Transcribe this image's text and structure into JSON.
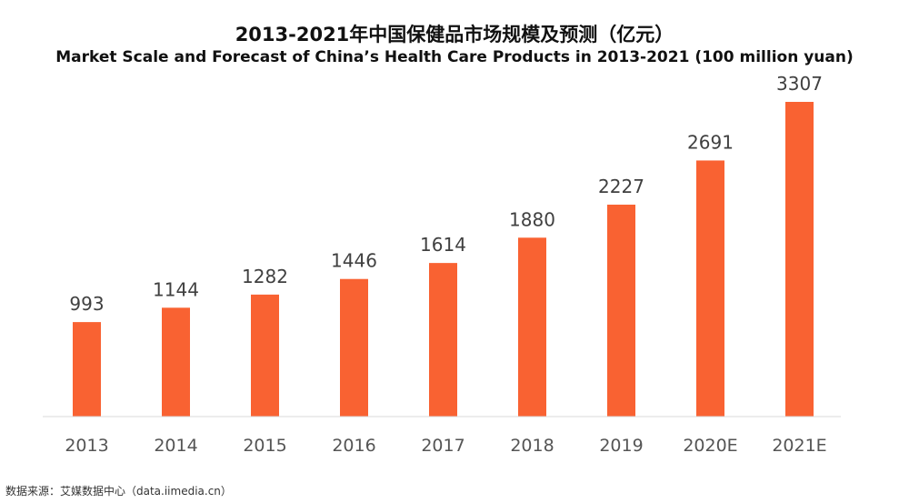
{
  "chart_data": {
    "type": "bar",
    "title": "2013-2021年中国保健品市场规模及预测（亿元）",
    "subtitle": "Market Scale and Forecast of China’s Health Care Products in 2013-2021 (100 million yuan)",
    "categories": [
      "2013",
      "2014",
      "2015",
      "2016",
      "2017",
      "2018",
      "2019",
      "2020E",
      "2021E"
    ],
    "values": [
      993,
      1144,
      1282,
      1446,
      1614,
      1880,
      2227,
      2691,
      3307
    ],
    "xlabel": "",
    "ylabel": "",
    "ylim": [
      0,
      3307
    ],
    "grid": false,
    "legend": "none",
    "bar_color": "#F96232"
  },
  "source": "数据来源：艾媒数据中心（data.iimedia.cn）"
}
